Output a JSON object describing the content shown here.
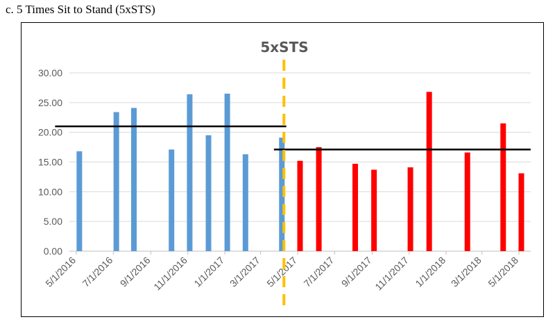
{
  "caption": "c. 5 Times Sit to Stand (5xSTS)",
  "chart_data": {
    "type": "bar",
    "title": "5xSTS",
    "xlabel": "",
    "ylabel": "",
    "ylim": [
      0,
      30
    ],
    "y_ticks": [
      "0.00",
      "5.00",
      "10.00",
      "15.00",
      "20.00",
      "25.00",
      "30.00"
    ],
    "x_ticks": [
      "5/1/2016",
      "7/1/2016",
      "9/1/2016",
      "11/1/2016",
      "1/1/2017",
      "3/1/2017",
      "5/1/2017",
      "7/1/2017",
      "9/1/2017",
      "11/1/2017",
      "1/1/2018",
      "3/1/2018",
      "5/1/2018"
    ],
    "grid": true,
    "series": [
      {
        "color": "#5B9BD5",
        "x": [
          "2016-05-06",
          "2016-07-06",
          "2016-08-04",
          "2016-10-05",
          "2016-11-04",
          "2016-12-05",
          "2017-01-05",
          "2017-02-04",
          "2017-04-05"
        ],
        "values": [
          16.8,
          23.4,
          24.1,
          17.1,
          26.4,
          19.5,
          26.5,
          16.3,
          19.1
        ]
      },
      {
        "color": "#FF0000",
        "x": [
          "2017-05-05",
          "2017-06-05",
          "2017-08-04",
          "2017-09-04",
          "2017-11-03",
          "2017-12-04",
          "2018-02-05",
          "2018-04-05",
          "2018-05-05"
        ],
        "values": [
          15.2,
          17.5,
          14.7,
          13.7,
          14.1,
          26.8,
          16.6,
          21.5,
          13.1
        ]
      }
    ],
    "reference_lines": [
      {
        "value": 21.0,
        "x_from": "2016-04-28",
        "x_to": "2017-04-10",
        "color": "#000000"
      },
      {
        "value": 17.1,
        "x_from": "2017-04-24",
        "x_to": "2018-05-18",
        "color": "#000000"
      }
    ],
    "divider": {
      "x": "2017-04-05",
      "color": "#FFC000",
      "style": "dashed"
    }
  }
}
